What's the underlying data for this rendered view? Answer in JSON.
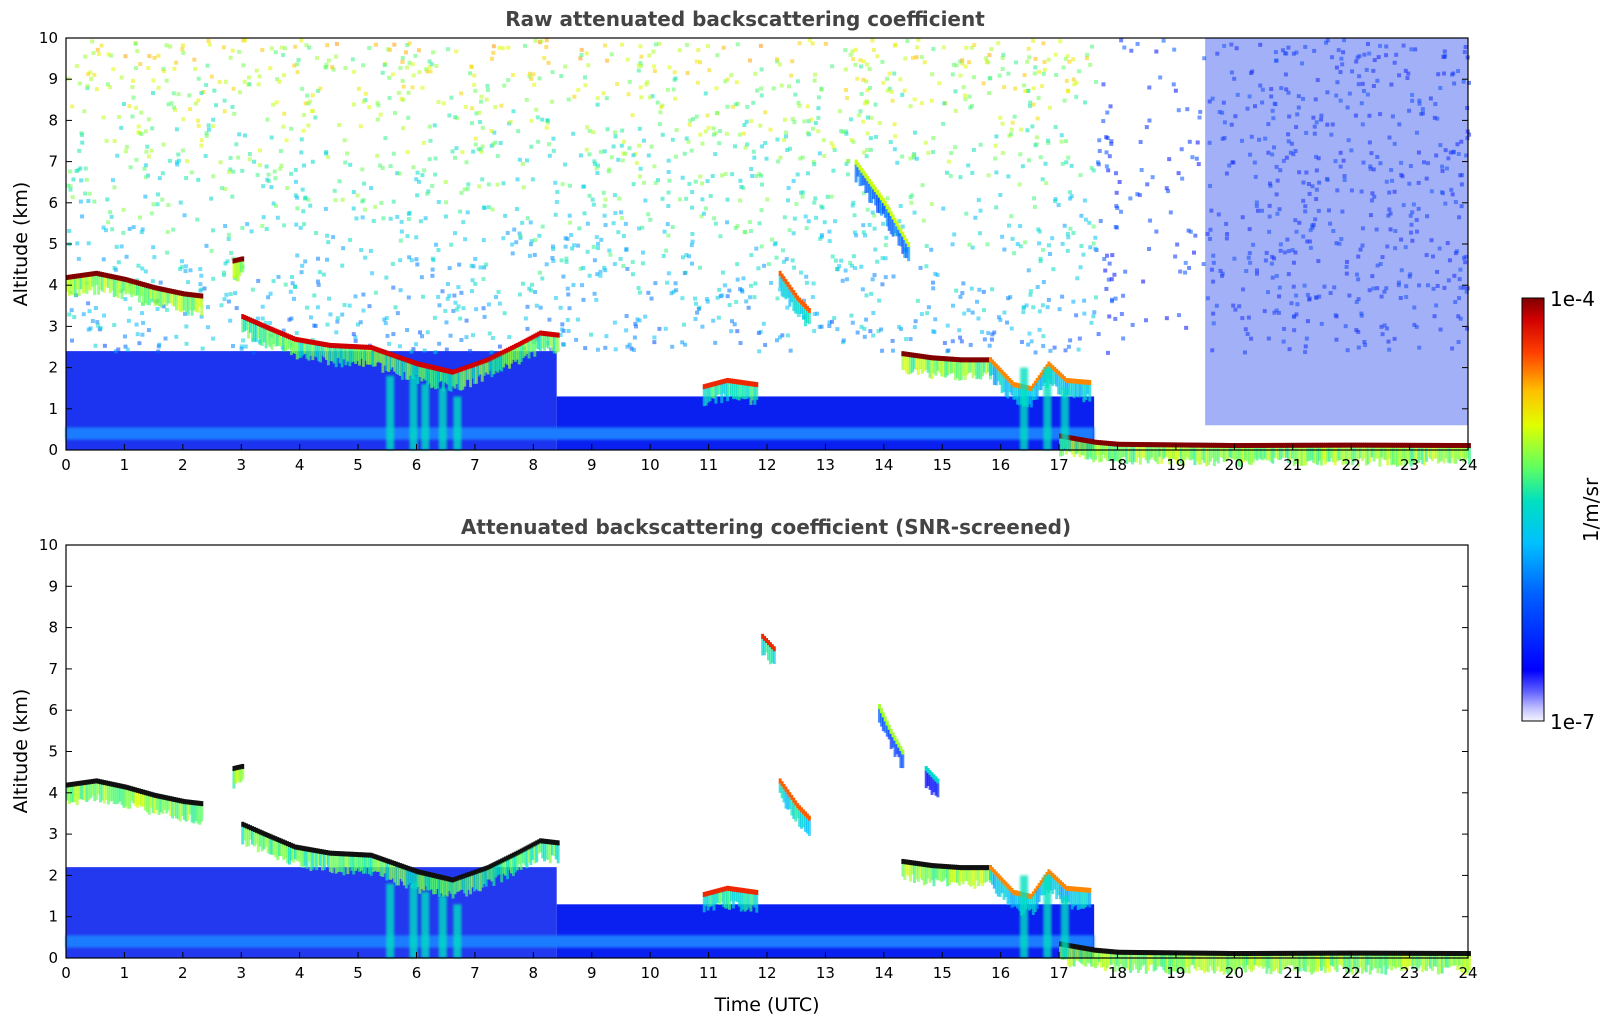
{
  "chart_data": [
    {
      "type": "heatmap",
      "title": "Raw attenuated backscattering coefficient",
      "xlabel": "",
      "ylabel": "Altitude (km)",
      "xlim": [
        0,
        24
      ],
      "ylim": [
        0,
        10
      ],
      "xticks": [
        "0",
        "1",
        "2",
        "3",
        "4",
        "5",
        "6",
        "7",
        "8",
        "9",
        "10",
        "11",
        "12",
        "13",
        "14",
        "15",
        "16",
        "17",
        "18",
        "19",
        "20",
        "21",
        "22",
        "23",
        "24"
      ],
      "yticks": [
        "0",
        "1",
        "2",
        "3",
        "4",
        "5",
        "6",
        "7",
        "8",
        "9",
        "10"
      ],
      "screened": false,
      "noise": true,
      "layers": [
        {
          "x": [
            0.0,
            0.5,
            1.0,
            1.5,
            2.0,
            2.3
          ],
          "y": [
            4.2,
            4.3,
            4.15,
            3.95,
            3.8,
            3.75
          ],
          "level": 1.0
        },
        {
          "x": [
            3.0,
            3.4,
            3.9,
            4.5,
            5.2,
            6.0,
            6.6,
            7.2,
            7.7,
            8.1,
            8.4
          ],
          "y": [
            3.25,
            3.0,
            2.7,
            2.55,
            2.5,
            2.1,
            1.9,
            2.2,
            2.55,
            2.85,
            2.8
          ],
          "level": 0.95
        },
        {
          "x": [
            2.85,
            3.0
          ],
          "y": [
            4.6,
            4.65
          ],
          "level": 1.0
        },
        {
          "x": [
            12.2,
            12.5,
            12.7
          ],
          "y": [
            4.3,
            3.7,
            3.4
          ],
          "level": 0.85
        },
        {
          "x": [
            13.5,
            14.0,
            14.4
          ],
          "y": [
            7.0,
            6.0,
            5.0
          ],
          "level": 0.68
        },
        {
          "x": [
            14.3,
            14.8,
            15.3,
            15.8
          ],
          "y": [
            2.35,
            2.25,
            2.2,
            2.2
          ],
          "level": 1.0
        },
        {
          "x": [
            10.9,
            11.3,
            11.8
          ],
          "y": [
            1.55,
            1.7,
            1.6
          ],
          "level": 0.9
        },
        {
          "x": [
            15.8,
            16.2,
            16.5,
            16.8,
            17.1,
            17.5
          ],
          "y": [
            2.2,
            1.6,
            1.5,
            2.1,
            1.7,
            1.65
          ],
          "level": 0.82
        },
        {
          "x": [
            17.0,
            17.6,
            18.0,
            20.0,
            22.0,
            24.0
          ],
          "y": [
            0.35,
            0.2,
            0.15,
            0.12,
            0.13,
            0.12
          ],
          "level": 1.0
        }
      ],
      "precipitation": [
        {
          "x": 5.55,
          "top": 1.8
        },
        {
          "x": 5.95,
          "top": 1.8
        },
        {
          "x": 6.15,
          "top": 1.6
        },
        {
          "x": 6.45,
          "top": 1.5
        },
        {
          "x": 6.7,
          "top": 1.3
        },
        {
          "x": 16.4,
          "top": 2.0
        },
        {
          "x": 16.8,
          "top": 2.0
        },
        {
          "x": 17.1,
          "top": 1.5
        }
      ]
    },
    {
      "type": "heatmap",
      "title": "Attenuated backscattering coefficient (SNR-screened)",
      "xlabel": "Time (UTC)",
      "ylabel": "Altitude (km)",
      "xlim": [
        0,
        24
      ],
      "ylim": [
        0,
        10
      ],
      "xticks": [
        "0",
        "1",
        "2",
        "3",
        "4",
        "5",
        "6",
        "7",
        "8",
        "9",
        "10",
        "11",
        "12",
        "13",
        "14",
        "15",
        "16",
        "17",
        "18",
        "19",
        "20",
        "21",
        "22",
        "23",
        "24"
      ],
      "yticks": [
        "0",
        "1",
        "2",
        "3",
        "4",
        "5",
        "6",
        "7",
        "8",
        "9",
        "10"
      ],
      "screened": true,
      "noise": false,
      "layers": [
        {
          "x": [
            0.0,
            0.5,
            1.0,
            1.5,
            2.0,
            2.3
          ],
          "y": [
            4.2,
            4.3,
            4.15,
            3.95,
            3.8,
            3.75
          ],
          "level": 1.0
        },
        {
          "x": [
            3.0,
            3.4,
            3.9,
            4.5,
            5.2,
            6.0,
            6.6,
            7.2,
            7.7,
            8.1,
            8.4
          ],
          "y": [
            3.25,
            3.0,
            2.7,
            2.55,
            2.5,
            2.1,
            1.9,
            2.2,
            2.55,
            2.85,
            2.8
          ],
          "level": 0.95
        },
        {
          "x": [
            2.85,
            3.0
          ],
          "y": [
            4.6,
            4.65
          ],
          "level": 1.0
        },
        {
          "x": [
            12.2,
            12.5,
            12.7
          ],
          "y": [
            4.3,
            3.7,
            3.4
          ],
          "level": 0.85
        },
        {
          "x": [
            13.9,
            14.1,
            14.3
          ],
          "y": [
            6.1,
            5.5,
            5.0
          ],
          "level": 0.65
        },
        {
          "x": [
            14.7,
            14.9
          ],
          "y": [
            4.6,
            4.3
          ],
          "level": 0.5
        },
        {
          "x": [
            11.9,
            12.1
          ],
          "y": [
            7.8,
            7.5
          ],
          "level": 0.9
        },
        {
          "x": [
            14.3,
            14.8,
            15.3,
            15.8
          ],
          "y": [
            2.35,
            2.25,
            2.2,
            2.2
          ],
          "level": 1.0
        },
        {
          "x": [
            10.9,
            11.3,
            11.8
          ],
          "y": [
            1.55,
            1.7,
            1.6
          ],
          "level": 0.9
        },
        {
          "x": [
            15.8,
            16.2,
            16.5,
            16.8,
            17.1,
            17.5
          ],
          "y": [
            2.2,
            1.6,
            1.5,
            2.1,
            1.7,
            1.65
          ],
          "level": 0.82
        },
        {
          "x": [
            17.0,
            17.6,
            18.0,
            20.0,
            22.0,
            24.0
          ],
          "y": [
            0.35,
            0.2,
            0.15,
            0.12,
            0.13,
            0.12
          ],
          "level": 1.0
        }
      ],
      "precipitation": [
        {
          "x": 5.55,
          "top": 1.8
        },
        {
          "x": 5.95,
          "top": 1.8
        },
        {
          "x": 6.15,
          "top": 1.6
        },
        {
          "x": 6.45,
          "top": 1.5
        },
        {
          "x": 6.7,
          "top": 1.3
        },
        {
          "x": 16.4,
          "top": 2.0
        },
        {
          "x": 16.8,
          "top": 2.0
        },
        {
          "x": 17.1,
          "top": 1.5
        }
      ]
    }
  ],
  "colorbar": {
    "label": "1/m/sr",
    "min_label": "1e-7",
    "max_label": "1e-4",
    "scale": "log",
    "colormap": "jet",
    "colors": [
      "#ffffff",
      "#0000ff",
      "#0080ff",
      "#00e5e5",
      "#40ff80",
      "#ffff00",
      "#ff8000",
      "#ff0000",
      "#800000"
    ]
  }
}
